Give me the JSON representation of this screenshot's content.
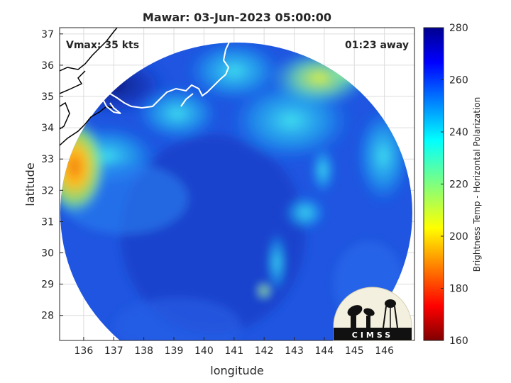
{
  "chart_data": {
    "type": "heatmap",
    "title": "Mawar: 03-Jun-2023 05:00:00",
    "xlabel": "longitude",
    "ylabel": "latitude",
    "xlim": [
      135.2,
      147.0
    ],
    "ylim": [
      27.2,
      37.2
    ],
    "xticks": [
      "136",
      "137",
      "138",
      "139",
      "140",
      "141",
      "142",
      "143",
      "144",
      "145",
      "146"
    ],
    "yticks": [
      "28",
      "29",
      "30",
      "31",
      "32",
      "33",
      "34",
      "35",
      "36",
      "37"
    ],
    "grid": true,
    "annotations": {
      "vmax": "Vmax: 35 kts",
      "time_away": "01:23 away"
    },
    "colorbar": {
      "label": "Brightness Temp - Horizontal Polarization",
      "range": [
        160,
        280
      ],
      "ticks": [
        "160",
        "180",
        "200",
        "220",
        "240",
        "260",
        "280"
      ],
      "colormap": "jet"
    },
    "swath": {
      "center": [
        140.9,
        30.25
      ],
      "warm_spot": {
        "lon": 136.1,
        "lat": 32.8,
        "value": 205
      },
      "cold_region": {
        "lon": 138.5,
        "lat": 35.2,
        "value": 268
      },
      "background_value": 262
    }
  },
  "logo": {
    "text": "CIMSS"
  }
}
